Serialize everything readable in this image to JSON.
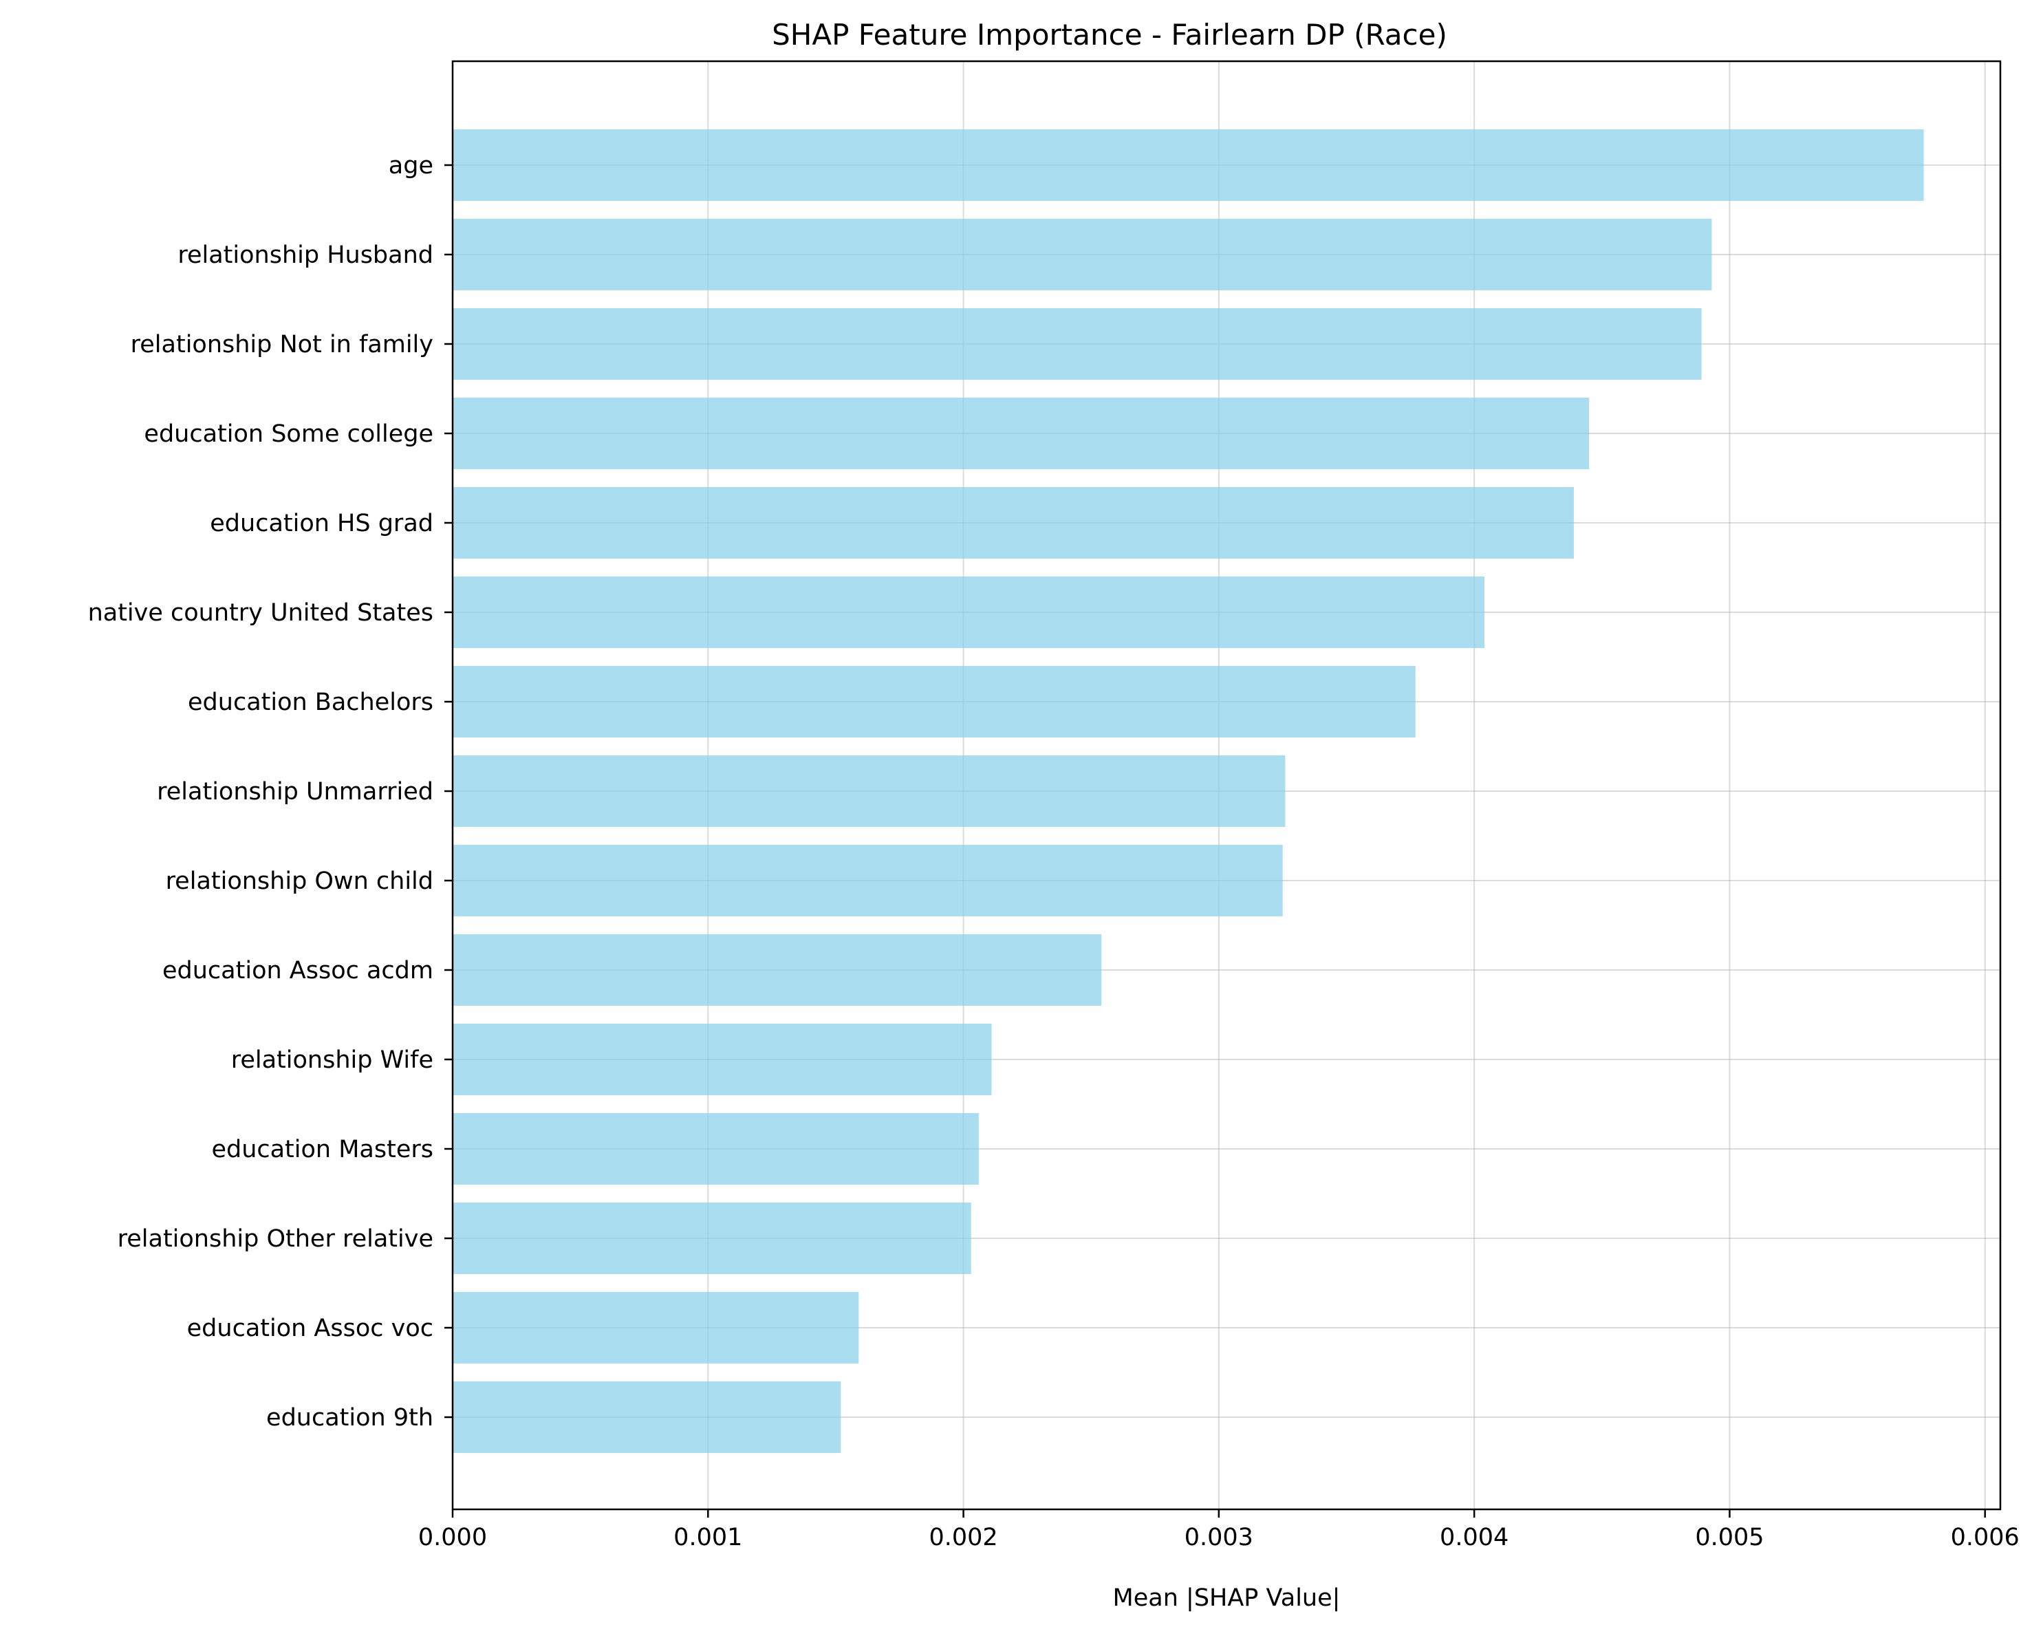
{
  "chart_data": {
    "type": "bar",
    "orientation": "horizontal",
    "title": "SHAP Feature Importance - Fairlearn DP (Race)",
    "xlabel": "Mean |SHAP Value|",
    "ylabel": "",
    "categories": [
      "age",
      "relationship Husband",
      "relationship Not in family",
      "education Some college",
      "education HS grad",
      "native country United States",
      "education Bachelors",
      "relationship Unmarried",
      "relationship Own child",
      "education Assoc acdm",
      "relationship Wife",
      "education Masters",
      "relationship Other relative",
      "education Assoc voc",
      "education 9th"
    ],
    "values": [
      0.00576,
      0.00493,
      0.00489,
      0.00445,
      0.00439,
      0.00404,
      0.00377,
      0.00326,
      0.00325,
      0.00254,
      0.00211,
      0.00206,
      0.00203,
      0.00159,
      0.00152
    ],
    "xlim": [
      0,
      0.00606
    ],
    "xticks": [
      0,
      0.001,
      0.002,
      0.003,
      0.004,
      0.005,
      0.006
    ],
    "xtick_labels": [
      "0.000",
      "0.001",
      "0.002",
      "0.003",
      "0.004",
      "0.005",
      "0.006"
    ],
    "grid": true,
    "legend": "none",
    "bar_color": "#87CEEB"
  }
}
